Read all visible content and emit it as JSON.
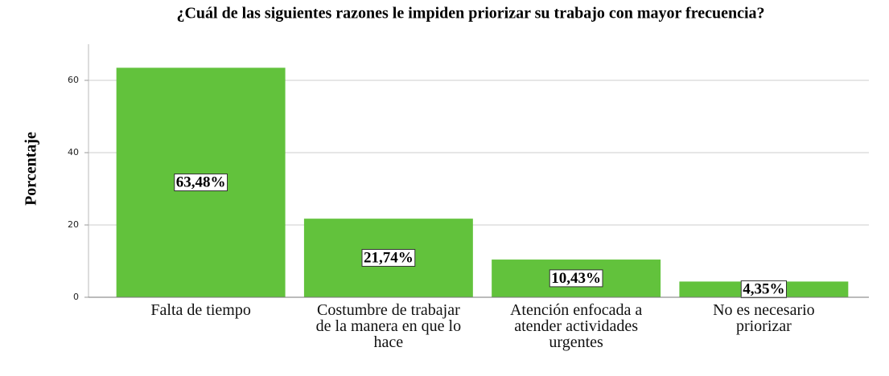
{
  "chart_data": {
    "type": "bar",
    "title": "¿Cuál de las siguientes razones le impiden priorizar su trabajo con mayor frecuencia?",
    "y_label": "Porcentaje",
    "categories": [
      "Falta de tiempo",
      "Costumbre de trabajar de la manera en que lo hace",
      "Atención enfocada a atender actividades urgentes",
      "No es necesario priorizar"
    ],
    "values": [
      63.48,
      21.74,
      10.43,
      4.35
    ],
    "value_labels": [
      "63,48%",
      "21,74%",
      "10,43%",
      "4,35%"
    ],
    "color": "#62c23c",
    "ylim": [
      0,
      70
    ],
    "yticks": [
      0,
      20,
      40,
      60
    ],
    "grid": true
  }
}
